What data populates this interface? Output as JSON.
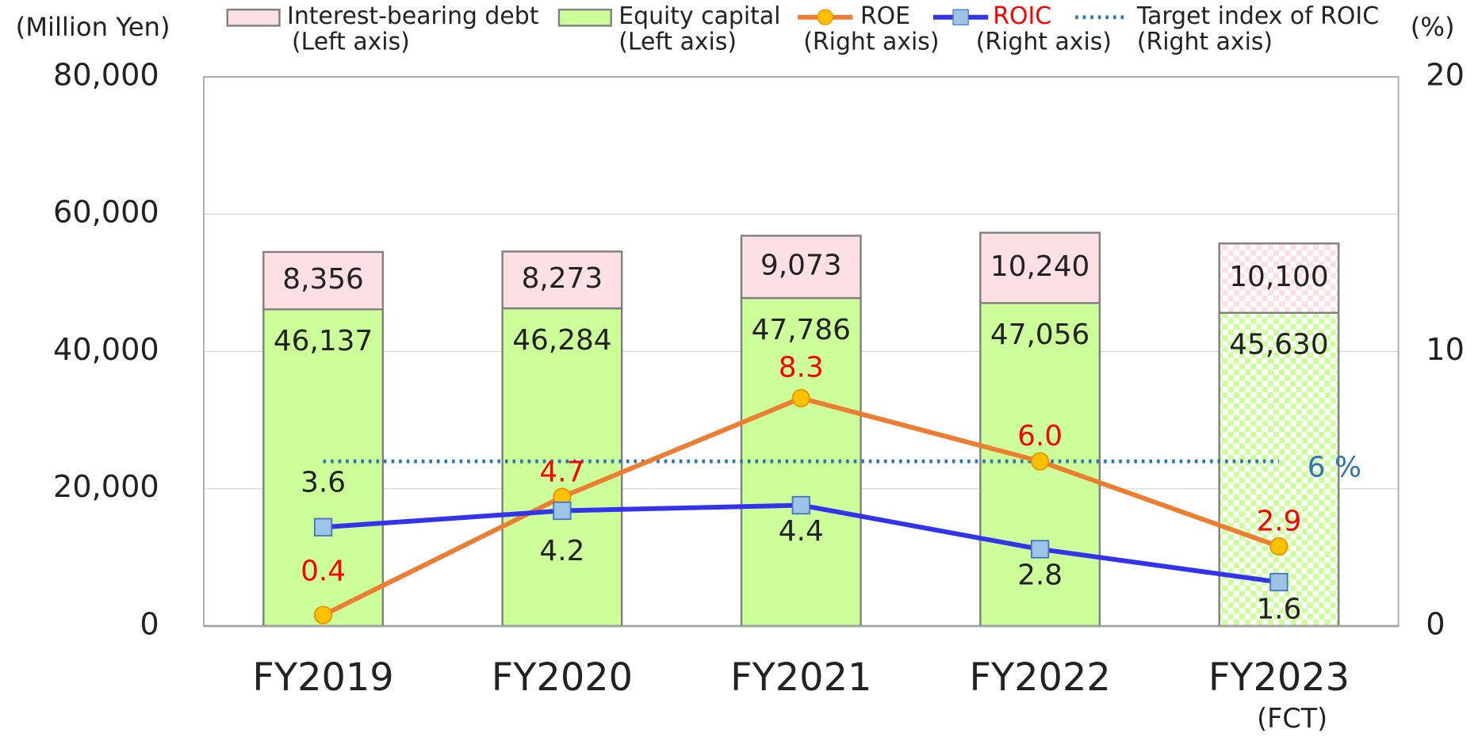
{
  "chart_data": {
    "type": "bar",
    "y_label": "(Million Yen)",
    "y2_label": "(%)",
    "categories": [
      "FY2019",
      "FY2020",
      "FY2021",
      "FY2022",
      "FY2023"
    ],
    "category_notes": [
      null,
      null,
      null,
      null,
      "(FCT)"
    ],
    "ylim": [
      0,
      80000
    ],
    "yticks": [
      {
        "value": 0,
        "label": "0"
      },
      {
        "value": 20000,
        "label": "20,000"
      },
      {
        "value": 40000,
        "label": "40,000"
      },
      {
        "value": 60000,
        "label": "60,000"
      },
      {
        "value": 80000,
        "label": "80,000"
      }
    ],
    "y2lim": [
      0,
      20
    ],
    "y2ticks": [
      0,
      10,
      20
    ],
    "grid": true,
    "series": [
      {
        "name": "Equity capital",
        "legend_note": "(Left axis)",
        "type": "bar",
        "color": "#ccff99",
        "values": [
          46137,
          46284,
          47786,
          47056,
          45630
        ],
        "value_labels": [
          "46,137",
          "46,284",
          "47,786",
          "47,056",
          "45,630"
        ]
      },
      {
        "name": "Interest-bearing debt",
        "legend_note": "(Left axis)",
        "type": "bar",
        "color": "#fde0e3",
        "values": [
          8356,
          8273,
          9073,
          10240,
          10100
        ],
        "value_labels": [
          "8,356",
          "8,273",
          "9,073",
          "10,240",
          "10,100"
        ]
      },
      {
        "name": "ROE",
        "legend_note": "(Right axis)",
        "type": "line",
        "axis": "y2",
        "color": "#ed7d31",
        "marker_color": "#ffc000",
        "label_color": "#ff0000",
        "values": [
          0.4,
          4.7,
          8.3,
          6.0,
          2.9
        ],
        "value_labels": [
          "0.4",
          "4.7",
          "8.3",
          "6.0",
          "2.9"
        ]
      },
      {
        "name": "ROIC",
        "legend_note": "(Right axis)",
        "legend_color": "#ff0000",
        "type": "line",
        "axis": "y2",
        "color": "#3333ee",
        "marker_color": "#9dc3e6",
        "label_color": "#222222",
        "values": [
          3.6,
          4.2,
          4.4,
          2.8,
          1.6
        ]
      }
    ],
    "target": {
      "name": "Target index of ROIC",
      "legend_note": "(Right axis)",
      "axis": "y2",
      "color": "#2e75b6",
      "value": 6,
      "value_label": "6 %"
    }
  }
}
